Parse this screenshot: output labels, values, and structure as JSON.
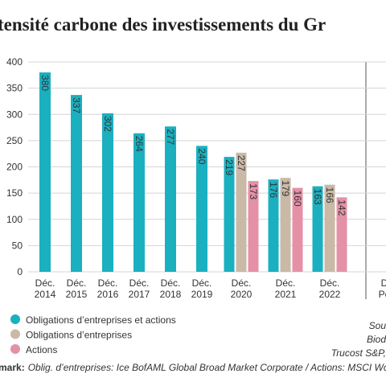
{
  "chart_data": {
    "type": "bar",
    "title": "tensité carbone des investissements du Gr",
    "categories": [
      "Déc. 2014",
      "Déc. 2015",
      "Déc. 2016",
      "Déc. 2017",
      "Déc. 2018",
      "Déc. 2019",
      "Déc. 2020",
      "Déc. 2021",
      "Déc. 2022",
      "D Po"
    ],
    "series": [
      {
        "name": "Obligations d’entreprises et actions",
        "color": "#1ab0c0",
        "values": [
          380,
          337,
          302,
          264,
          277,
          240,
          219,
          176,
          163,
          null
        ]
      },
      {
        "name": "Obligations d’entreprises",
        "color": "#c9b9a6",
        "values": [
          null,
          null,
          null,
          null,
          null,
          null,
          227,
          179,
          166,
          null
        ]
      },
      {
        "name": "Actions",
        "color": "#e491a8",
        "values": [
          null,
          null,
          null,
          null,
          null,
          null,
          173,
          160,
          142,
          null
        ]
      }
    ],
    "ylim": [
      0,
      400
    ],
    "yticks": [
      0,
      50,
      100,
      150,
      200,
      250,
      300,
      350,
      400
    ],
    "grid": true,
    "source": [
      "Sou",
      "Biod",
      "Trucost S&P, "
    ],
    "footnote_label": "mark:",
    "footnote": "Oblig. d’entreprises: Ice BofAML Global Broad Market Corporate / Actions: MSCI World AC / Fonds s"
  }
}
